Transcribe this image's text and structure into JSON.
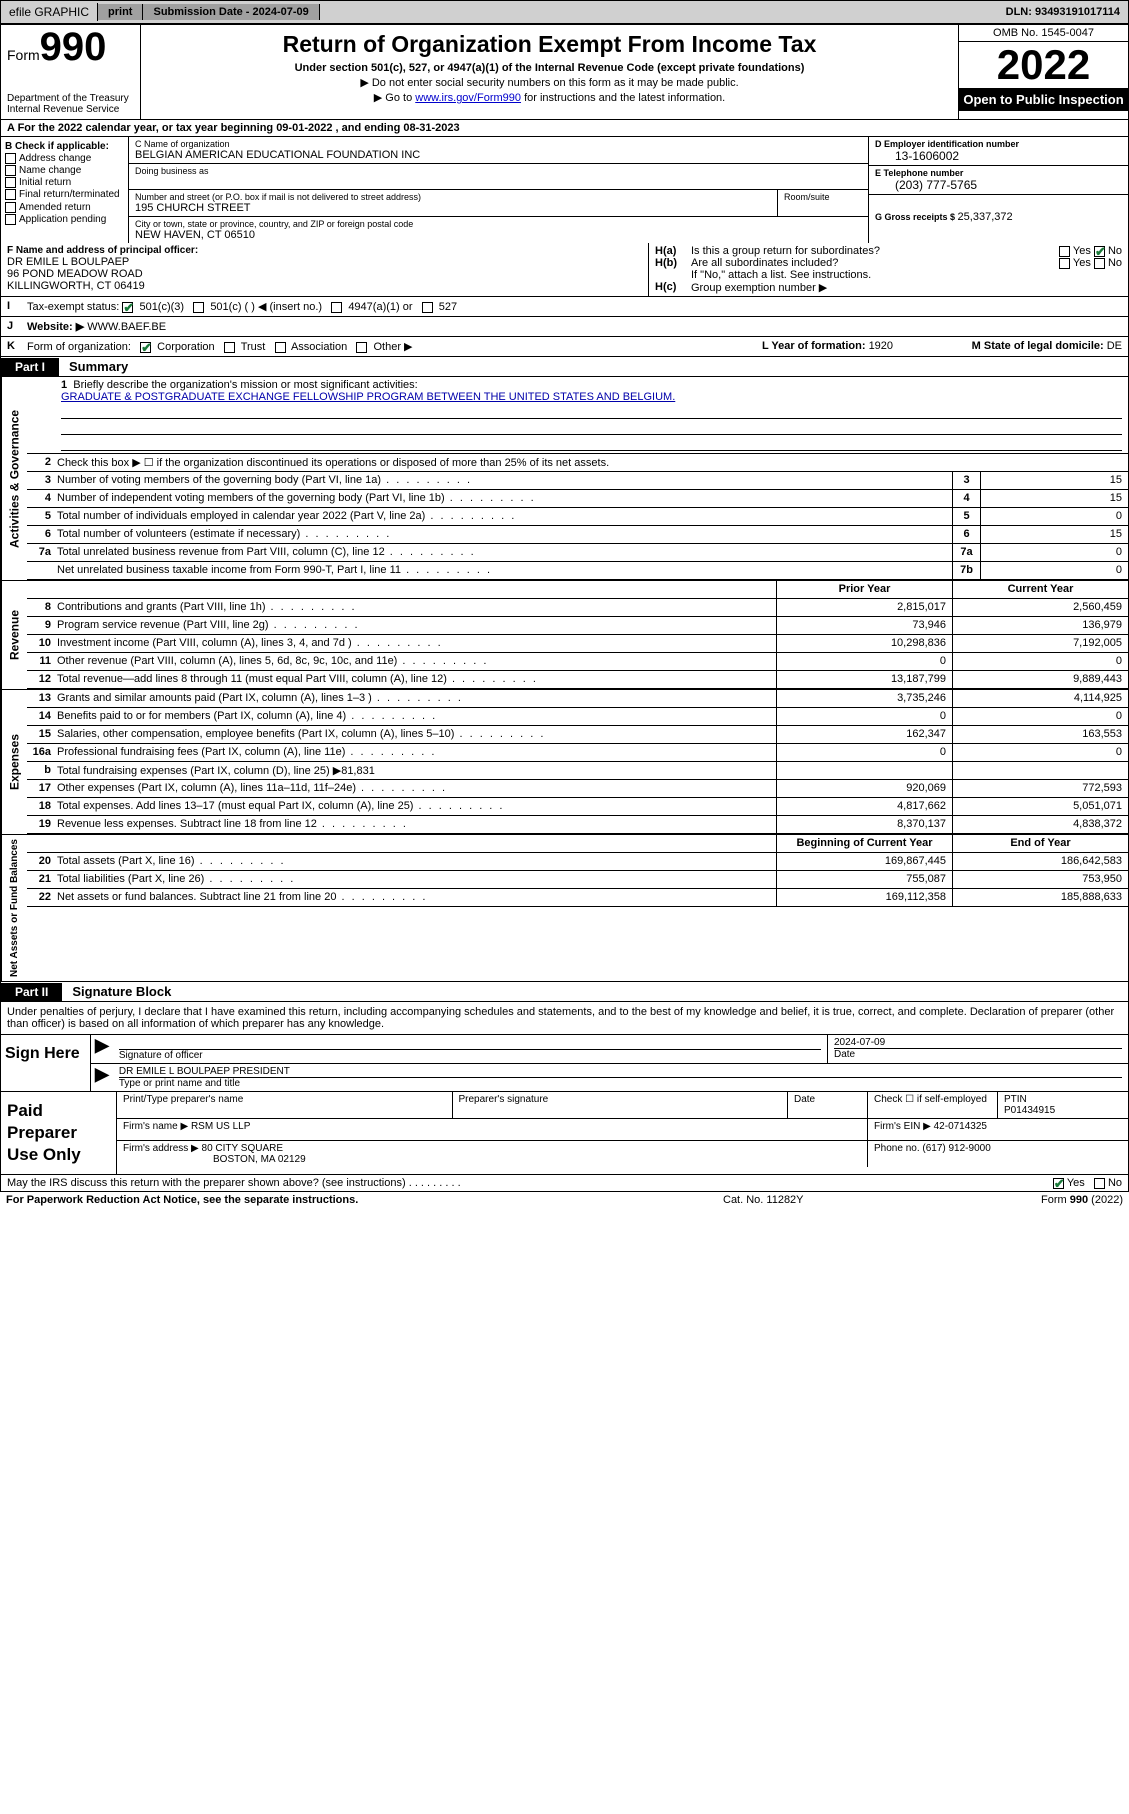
{
  "topbar": {
    "efile": "efile GRAPHIC",
    "print": "print",
    "submission_label": "Submission Date - ",
    "submission_date": "2024-07-09",
    "dln_label": "DLN: ",
    "dln": "93493191017114"
  },
  "header": {
    "form_word": "Form",
    "form_num": "990",
    "dept": "Department of the Treasury\nInternal Revenue Service",
    "title": "Return of Organization Exempt From Income Tax",
    "subtitle": "Under section 501(c), 527, or 4947(a)(1) of the Internal Revenue Code (except private foundations)",
    "note1": "▶ Do not enter social security numbers on this form as it may be made public.",
    "note2_pre": "▶ Go to ",
    "note2_link": "www.irs.gov/Form990",
    "note2_post": " for instructions and the latest information.",
    "omb": "OMB No. 1545-0047",
    "year": "2022",
    "open": "Open to Public Inspection"
  },
  "rowA": {
    "text": "A For the 2022 calendar year, or tax year beginning 09-01-2022   , and ending 08-31-2023"
  },
  "B": {
    "hdr": "B Check if applicable:",
    "items": [
      "Address change",
      "Name change",
      "Initial return",
      "Final return/terminated",
      "Amended return",
      "Application pending"
    ]
  },
  "C": {
    "name_lab": "C Name of organization",
    "name": "BELGIAN AMERICAN EDUCATIONAL FOUNDATION INC",
    "dba_lab": "Doing business as",
    "dba": "",
    "street_lab": "Number and street (or P.O. box if mail is not delivered to street address)",
    "room_lab": "Room/suite",
    "street": "195 CHURCH STREET",
    "city_lab": "City or town, state or province, country, and ZIP or foreign postal code",
    "city": "NEW HAVEN, CT  06510"
  },
  "D": {
    "ein_lab": "D Employer identification number",
    "ein": "13-1606002",
    "phone_lab": "E Telephone number",
    "phone": "(203) 777-5765",
    "gross_lab": "G Gross receipts $ ",
    "gross": "25,337,372"
  },
  "F": {
    "lab": "F Name and address of principal officer:",
    "name": "DR EMILE L BOULPAEP",
    "addr1": "96 POND MEADOW ROAD",
    "addr2": "KILLINGWORTH, CT  06419"
  },
  "H": {
    "a_lab": "H(a)",
    "a_txt": "Is this a group return for subordinates?",
    "a_yes": "Yes",
    "a_no": "No",
    "b_lab": "H(b)",
    "b_txt": "Are all subordinates included?",
    "b_note": "If \"No,\" attach a list. See instructions.",
    "c_lab": "H(c)",
    "c_txt": "Group exemption number ▶"
  },
  "I": {
    "lab": "I",
    "txt": "Tax-exempt status:",
    "opts": [
      "501(c)(3)",
      "501(c) (  ) ◀ (insert no.)",
      "4947(a)(1) or",
      "527"
    ]
  },
  "J": {
    "lab": "J",
    "txt": "Website: ▶ ",
    "val": "WWW.BAEF.BE"
  },
  "K": {
    "lab": "K",
    "txt": "Form of organization:",
    "opts": [
      "Corporation",
      "Trust",
      "Association",
      "Other ▶"
    ],
    "L_lab": "L Year of formation: ",
    "L_val": "1920",
    "M_lab": "M State of legal domicile: ",
    "M_val": "DE"
  },
  "part1": {
    "blk": "Part I",
    "ttl": "Summary"
  },
  "mission": {
    "num": "1",
    "lab": "Briefly describe the organization's mission or most significant activities:",
    "val": "GRADUATE & POSTGRADUATE EXCHANGE FELLOWSHIP PROGRAM BETWEEN THE UNITED STATES AND BELGIUM."
  },
  "gov": {
    "side": "Activities & Governance",
    "r2": "Check this box ▶ ☐  if the organization discontinued its operations or disposed of more than 25% of its net assets.",
    "rows": [
      {
        "n": "3",
        "d": "Number of voting members of the governing body (Part VI, line 1a)",
        "box": "3",
        "v": "15"
      },
      {
        "n": "4",
        "d": "Number of independent voting members of the governing body (Part VI, line 1b)",
        "box": "4",
        "v": "15"
      },
      {
        "n": "5",
        "d": "Total number of individuals employed in calendar year 2022 (Part V, line 2a)",
        "box": "5",
        "v": "0"
      },
      {
        "n": "6",
        "d": "Total number of volunteers (estimate if necessary)",
        "box": "6",
        "v": "15"
      },
      {
        "n": "7a",
        "d": "Total unrelated business revenue from Part VIII, column (C), line 12",
        "box": "7a",
        "v": "0"
      },
      {
        "n": "",
        "d": "Net unrelated business taxable income from Form 990-T, Part I, line 11",
        "box": "7b",
        "v": "0"
      }
    ]
  },
  "rev": {
    "side": "Revenue",
    "hdr_prior": "Prior Year",
    "hdr_curr": "Current Year",
    "rows": [
      {
        "n": "8",
        "d": "Contributions and grants (Part VIII, line 1h)",
        "p": "2,815,017",
        "c": "2,560,459"
      },
      {
        "n": "9",
        "d": "Program service revenue (Part VIII, line 2g)",
        "p": "73,946",
        "c": "136,979"
      },
      {
        "n": "10",
        "d": "Investment income (Part VIII, column (A), lines 3, 4, and 7d )",
        "p": "10,298,836",
        "c": "7,192,005"
      },
      {
        "n": "11",
        "d": "Other revenue (Part VIII, column (A), lines 5, 6d, 8c, 9c, 10c, and 11e)",
        "p": "0",
        "c": "0"
      },
      {
        "n": "12",
        "d": "Total revenue—add lines 8 through 11 (must equal Part VIII, column (A), line 12)",
        "p": "13,187,799",
        "c": "9,889,443"
      }
    ]
  },
  "exp": {
    "side": "Expenses",
    "rows": [
      {
        "n": "13",
        "d": "Grants and similar amounts paid (Part IX, column (A), lines 1–3 )",
        "p": "3,735,246",
        "c": "4,114,925"
      },
      {
        "n": "14",
        "d": "Benefits paid to or for members (Part IX, column (A), line 4)",
        "p": "0",
        "c": "0"
      },
      {
        "n": "15",
        "d": "Salaries, other compensation, employee benefits (Part IX, column (A), lines 5–10)",
        "p": "162,347",
        "c": "163,553"
      },
      {
        "n": "16a",
        "d": "Professional fundraising fees (Part IX, column (A), line 11e)",
        "p": "0",
        "c": "0"
      },
      {
        "n": "b",
        "d": "Total fundraising expenses (Part IX, column (D), line 25) ▶81,831",
        "p": "",
        "c": "",
        "shade": true
      },
      {
        "n": "17",
        "d": "Other expenses (Part IX, column (A), lines 11a–11d, 11f–24e)",
        "p": "920,069",
        "c": "772,593"
      },
      {
        "n": "18",
        "d": "Total expenses. Add lines 13–17 (must equal Part IX, column (A), line 25)",
        "p": "4,817,662",
        "c": "5,051,071"
      },
      {
        "n": "19",
        "d": "Revenue less expenses. Subtract line 18 from line 12",
        "p": "8,370,137",
        "c": "4,838,372"
      }
    ]
  },
  "net": {
    "side": "Net Assets or Fund Balances",
    "hdr_prior": "Beginning of Current Year",
    "hdr_curr": "End of Year",
    "rows": [
      {
        "n": "20",
        "d": "Total assets (Part X, line 16)",
        "p": "169,867,445",
        "c": "186,642,583"
      },
      {
        "n": "21",
        "d": "Total liabilities (Part X, line 26)",
        "p": "755,087",
        "c": "753,950"
      },
      {
        "n": "22",
        "d": "Net assets or fund balances. Subtract line 21 from line 20",
        "p": "169,112,358",
        "c": "185,888,633"
      }
    ]
  },
  "part2": {
    "blk": "Part II",
    "ttl": "Signature Block"
  },
  "sig": {
    "decl": "Under penalties of perjury, I declare that I have examined this return, including accompanying schedules and statements, and to the best of my knowledge and belief, it is true, correct, and complete. Declaration of preparer (other than officer) is based on all information of which preparer has any knowledge.",
    "here": "Sign Here",
    "sig_lab": "Signature of officer",
    "date_lab": "Date",
    "date_val": "2024-07-09",
    "name_lab": "Type or print name and title",
    "name_val": "DR EMILE L BOULPAEP  PRESIDENT"
  },
  "paid": {
    "lab": "Paid Preparer Use Only",
    "h1": "Print/Type preparer's name",
    "h2": "Preparer's signature",
    "h3": "Date",
    "h4_pre": "Check ☐ if self-employed",
    "h5": "PTIN",
    "ptin": "P01434915",
    "firm_lab": "Firm's name   ▶ ",
    "firm": "RSM US LLP",
    "ein_lab": "Firm's EIN ▶ ",
    "ein": "42-0714325",
    "addr_lab": "Firm's address ▶ ",
    "addr1": "80 CITY SQUARE",
    "addr2": "BOSTON, MA  02129",
    "phone_lab": "Phone no. ",
    "phone": "(617) 912-9000"
  },
  "discuss": {
    "txt": "May the IRS discuss this return with the preparer shown above? (see instructions)",
    "yes": "Yes",
    "no": "No"
  },
  "footer": {
    "f1": "For Paperwork Reduction Act Notice, see the separate instructions.",
    "f2": "Cat. No. 11282Y",
    "f3": "Form 990 (2022)"
  }
}
